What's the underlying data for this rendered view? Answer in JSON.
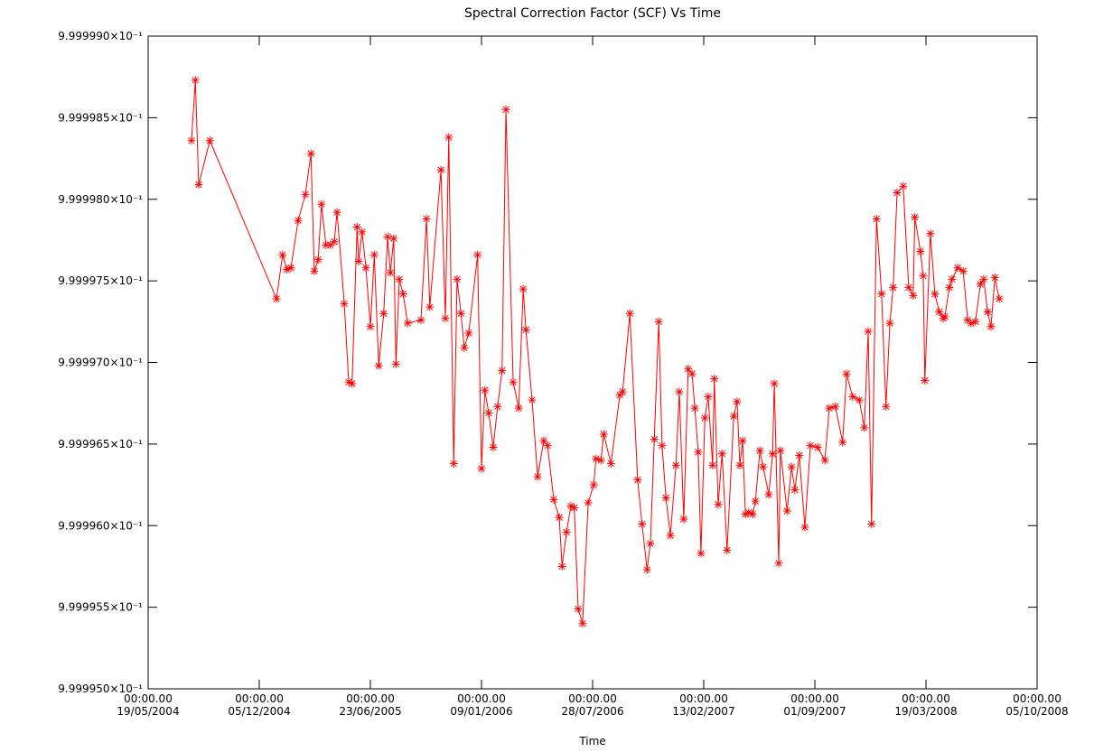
{
  "chart_data": {
    "type": "line",
    "title": "Spectral Correction Factor (SCF) Vs Time",
    "x_label": "Time",
    "color": "#ff0000",
    "marker": "asterisk",
    "xlim": [
      "2004-05-19",
      "2008-10-05"
    ],
    "xticks": [
      {
        "value": "2004-05-19",
        "label": "00:00.00\n19/05/2004"
      },
      {
        "value": "2004-12-05",
        "label": "00:00.00\n05/12/2004"
      },
      {
        "value": "2005-06-23",
        "label": "00:00.00\n23/06/2005"
      },
      {
        "value": "2006-01-09",
        "label": "00:00.00\n09/01/2006"
      },
      {
        "value": "2006-07-28",
        "label": "00:00.00\n28/07/2006"
      },
      {
        "value": "2007-02-13",
        "label": "00:00.00\n13/02/2007"
      },
      {
        "value": "2007-09-01",
        "label": "00:00.00\n01/09/2007"
      },
      {
        "value": "2008-03-19",
        "label": "00:00.00\n19/03/2008"
      },
      {
        "value": "2008-10-05",
        "label": "00:00.00\n05/10/2008"
      }
    ],
    "ylim": [
      0.999995,
      0.999999
    ],
    "yticks": [
      {
        "value": 0.999995,
        "label": "9.999950×10⁻¹"
      },
      {
        "value": 0.9999955,
        "label": "9.999955×10⁻¹"
      },
      {
        "value": 0.999996,
        "label": "9.999960×10⁻¹"
      },
      {
        "value": 0.9999965,
        "label": "9.999965×10⁻¹"
      },
      {
        "value": 0.999997,
        "label": "9.999970×10⁻¹"
      },
      {
        "value": 0.9999975,
        "label": "9.999975×10⁻¹"
      },
      {
        "value": 0.999998,
        "label": "9.999980×10⁻¹"
      },
      {
        "value": 0.9999985,
        "label": "9.999985×10⁻¹"
      },
      {
        "value": 0.999999,
        "label": "9.999990×10⁻¹"
      }
    ],
    "x": [
      "2004-08-05",
      "2004-08-12",
      "2004-08-18",
      "2004-09-07",
      "2005-01-05",
      "2005-01-16",
      "2005-01-24",
      "2005-01-31",
      "2005-02-13",
      "2005-02-26",
      "2005-03-08",
      "2005-03-14",
      "2005-03-21",
      "2005-03-27",
      "2005-04-04",
      "2005-04-12",
      "2005-04-19",
      "2005-04-24",
      "2005-05-07",
      "2005-05-15",
      "2005-05-21",
      "2005-05-30",
      "2005-06-02",
      "2005-06-08",
      "2005-06-15",
      "2005-06-23",
      "2005-06-30",
      "2005-07-08",
      "2005-07-17",
      "2005-07-24",
      "2005-07-29",
      "2005-08-04",
      "2005-08-08",
      "2005-08-14",
      "2005-08-21",
      "2005-08-29",
      "2005-09-22",
      "2005-10-02",
      "2005-10-08",
      "2005-10-28",
      "2005-11-05",
      "2005-11-11",
      "2005-11-20",
      "2005-11-26",
      "2005-12-03",
      "2005-12-09",
      "2005-12-17",
      "2006-01-02",
      "2006-01-09",
      "2006-01-15",
      "2006-01-22",
      "2006-01-30",
      "2006-02-07",
      "2006-02-15",
      "2006-02-22",
      "2006-03-07",
      "2006-03-17",
      "2006-03-25",
      "2006-03-30",
      "2006-04-10",
      "2006-04-20",
      "2006-05-01",
      "2006-05-08",
      "2006-05-19",
      "2006-05-29",
      "2006-06-03",
      "2006-06-11",
      "2006-06-19",
      "2006-06-25",
      "2006-07-02",
      "2006-07-10",
      "2006-07-20",
      "2006-07-30",
      "2006-08-03",
      "2006-08-12",
      "2006-08-17",
      "2006-08-30",
      "2006-09-15",
      "2006-09-20",
      "2006-10-03",
      "2006-10-17",
      "2006-10-25",
      "2006-11-03",
      "2006-11-09",
      "2006-11-16",
      "2006-11-24",
      "2006-11-30",
      "2006-12-07",
      "2006-12-15",
      "2006-12-25",
      "2006-12-31",
      "2007-01-08",
      "2007-01-16",
      "2007-01-23",
      "2007-01-28",
      "2007-02-03",
      "2007-02-08",
      "2007-02-15",
      "2007-02-21",
      "2007-03-01",
      "2007-03-04",
      "2007-03-11",
      "2007-03-18",
      "2007-03-27",
      "2007-04-08",
      "2007-04-14",
      "2007-04-19",
      "2007-04-24",
      "2007-04-29",
      "2007-05-05",
      "2007-05-12",
      "2007-05-17",
      "2007-05-25",
      "2007-05-31",
      "2007-06-10",
      "2007-06-17",
      "2007-06-20",
      "2007-06-28",
      "2007-07-01",
      "2007-07-13",
      "2007-07-21",
      "2007-07-27",
      "2007-08-04",
      "2007-08-14",
      "2007-08-24",
      "2007-09-06",
      "2007-09-19",
      "2007-09-27",
      "2007-10-08",
      "2007-10-21",
      "2007-10-28",
      "2007-11-08",
      "2007-11-20",
      "2007-11-29",
      "2007-12-06",
      "2007-12-12",
      "2007-12-21",
      "2007-12-30",
      "2008-01-07",
      "2008-01-14",
      "2008-01-20",
      "2008-01-27",
      "2008-02-07",
      "2008-02-17",
      "2008-02-25",
      "2008-02-28",
      "2008-03-09",
      "2008-03-14",
      "2008-03-17",
      "2008-03-27",
      "2008-04-04",
      "2008-04-12",
      "2008-04-19",
      "2008-04-22",
      "2008-04-30",
      "2008-05-05",
      "2008-05-15",
      "2008-05-25",
      "2008-06-02",
      "2008-06-08",
      "2008-06-16",
      "2008-06-25",
      "2008-07-01",
      "2008-07-08",
      "2008-07-14",
      "2008-07-21",
      "2008-07-29"
    ],
    "values": [
      0.99999836,
      0.99999873,
      0.99999809,
      0.99999836,
      0.99999739,
      0.99999766,
      0.99999757,
      0.99999758,
      0.99999787,
      0.99999803,
      0.99999828,
      0.99999756,
      0.99999763,
      0.99999797,
      0.99999772,
      0.99999772,
      0.99999774,
      0.99999792,
      0.99999736,
      0.99999688,
      0.99999687,
      0.99999783,
      0.99999762,
      0.9999978,
      0.99999758,
      0.99999722,
      0.99999766,
      0.99999698,
      0.9999973,
      0.99999777,
      0.99999755,
      0.99999776,
      0.99999699,
      0.99999751,
      0.99999742,
      0.99999724,
      0.99999726,
      0.99999788,
      0.99999734,
      0.99999818,
      0.99999727,
      0.99999838,
      0.99999638,
      0.99999751,
      0.9999973,
      0.99999709,
      0.99999718,
      0.99999766,
      0.99999635,
      0.99999683,
      0.99999669,
      0.99999648,
      0.99999673,
      0.99999695,
      0.99999855,
      0.99999688,
      0.99999672,
      0.99999745,
      0.9999972,
      0.99999677,
      0.9999963,
      0.99999652,
      0.99999649,
      0.99999616,
      0.99999605,
      0.99999575,
      0.99999596,
      0.99999612,
      0.99999611,
      0.99999549,
      0.9999954,
      0.99999614,
      0.99999625,
      0.99999641,
      0.9999964,
      0.99999656,
      0.99999638,
      0.9999968,
      0.99999682,
      0.9999973,
      0.99999628,
      0.99999601,
      0.99999573,
      0.99999589,
      0.99999653,
      0.99999725,
      0.99999649,
      0.99999617,
      0.99999594,
      0.99999637,
      0.99999682,
      0.99999604,
      0.99999696,
      0.99999693,
      0.99999672,
      0.99999645,
      0.99999583,
      0.99999666,
      0.99999679,
      0.99999637,
      0.9999969,
      0.99999613,
      0.99999644,
      0.99999585,
      0.99999667,
      0.99999676,
      0.99999637,
      0.99999652,
      0.99999607,
      0.99999608,
      0.99999607,
      0.99999615,
      0.99999646,
      0.99999636,
      0.99999619,
      0.99999644,
      0.99999687,
      0.99999577,
      0.99999646,
      0.99999609,
      0.99999636,
      0.99999622,
      0.99999643,
      0.99999599,
      0.99999649,
      0.99999648,
      0.9999964,
      0.99999672,
      0.99999673,
      0.99999651,
      0.99999693,
      0.99999679,
      0.99999677,
      0.9999966,
      0.99999719,
      0.99999601,
      0.99999788,
      0.99999742,
      0.99999673,
      0.99999724,
      0.99999746,
      0.99999804,
      0.99999808,
      0.99999746,
      0.99999741,
      0.99999789,
      0.99999768,
      0.99999753,
      0.99999689,
      0.99999779,
      0.99999742,
      0.99999731,
      0.99999727,
      0.99999728,
      0.99999746,
      0.99999751,
      0.99999758,
      0.99999756,
      0.99999726,
      0.99999724,
      0.99999725,
      0.99999748,
      0.99999751,
      0.99999731,
      0.99999722,
      0.99999752,
      0.99999739
    ]
  }
}
